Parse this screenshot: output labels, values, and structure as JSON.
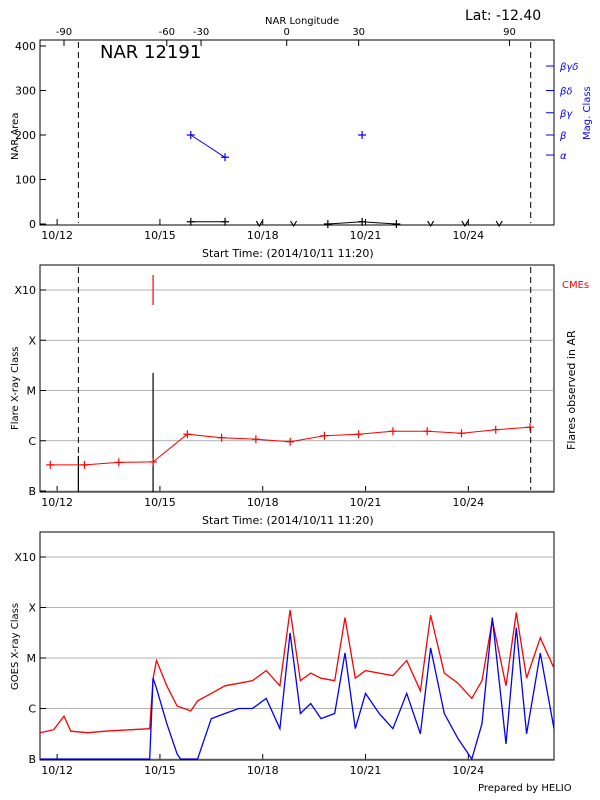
{
  "colors": {
    "axis": "#000000",
    "red": "#ff0000",
    "blue": "#0000ff",
    "grid": "#999999"
  },
  "footer": {
    "credit": "Prepared by HELIO"
  },
  "chart_data": [
    {
      "type": "line",
      "name": "nar-area-panel",
      "title": "NAR 12191",
      "lat_label": "Lat: -12.40",
      "ylabel": "NAR Area",
      "right_ylabel": "Mag. Class",
      "top_xlabel": "NAR Longitude",
      "xlabel": "Start Time: (2014/10/11 11:20)",
      "x_unit": "days since 2014/10/11 00:00",
      "xlim": [
        11.6,
        26.6
      ],
      "ylim": [
        0,
        400
      ],
      "xticks": [
        {
          "x": 12.1,
          "label": "10/12"
        },
        {
          "x": 15.1,
          "label": "10/15"
        },
        {
          "x": 18.1,
          "label": "10/18"
        },
        {
          "x": 21.1,
          "label": "10/21"
        },
        {
          "x": 24.1,
          "label": "10/24"
        }
      ],
      "yticks": [
        0,
        100,
        200,
        300,
        400
      ],
      "top_ticks": [
        {
          "x": 12.3,
          "label": "-90"
        },
        {
          "x": 15.3,
          "label": "-60"
        },
        {
          "x": 16.3,
          "label": "-30"
        },
        {
          "x": 18.8,
          "label": "0"
        },
        {
          "x": 20.9,
          "label": "30"
        },
        {
          "x": 25.3,
          "label": "90"
        }
      ],
      "right_ticks": [
        {
          "y": 155,
          "label": "α"
        },
        {
          "y": 200,
          "label": "β"
        },
        {
          "y": 250,
          "label": "βγ"
        },
        {
          "y": 300,
          "label": "βδ"
        },
        {
          "y": 355,
          "label": "βγδ"
        }
      ],
      "dashed_x": [
        12.72,
        25.92
      ],
      "series": [
        {
          "name": "area",
          "color": "black",
          "marker": "plus",
          "x": [
            16.0,
            17.0
          ],
          "y": [
            5,
            5
          ]
        },
        {
          "name": "area2",
          "color": "black",
          "marker": "plus",
          "x": [
            20.0,
            21.0,
            22.0
          ],
          "y": [
            0,
            5,
            0
          ]
        },
        {
          "name": "area-zero",
          "color": "black",
          "marker": "v",
          "x": [
            18.0,
            19.0,
            23.0,
            24.0,
            25.0
          ],
          "y": [
            0,
            0,
            0,
            0,
            0
          ]
        },
        {
          "name": "mag",
          "color": "blue",
          "marker": "plus",
          "x": [
            16.0,
            17.0
          ],
          "y": [
            200,
            150
          ]
        },
        {
          "name": "mag2",
          "color": "blue",
          "marker": "plus",
          "x": [
            21.0
          ],
          "y": [
            200
          ]
        }
      ]
    },
    {
      "type": "line",
      "name": "flare-panel",
      "ylabel": "Flare X-ray Class",
      "right_ylabel": "Flares observed in AR",
      "right_tag": "CMEs",
      "xlabel": "Start Time: (2014/10/11 11:20)",
      "xlim": [
        11.6,
        26.6
      ],
      "ylim": [
        0,
        4.0
      ],
      "xticks": [
        {
          "x": 12.1,
          "label": "10/12"
        },
        {
          "x": 15.1,
          "label": "10/15"
        },
        {
          "x": 18.1,
          "label": "10/18"
        },
        {
          "x": 21.1,
          "label": "10/21"
        },
        {
          "x": 24.1,
          "label": "10/24"
        }
      ],
      "yticks": [
        {
          "y": 0,
          "label": "B"
        },
        {
          "y": 1,
          "label": "C"
        },
        {
          "y": 2,
          "label": "M"
        },
        {
          "y": 3,
          "label": "X"
        },
        {
          "y": 4,
          "label": "X10"
        }
      ],
      "dashed_x": [
        12.72,
        25.92
      ],
      "cme_marks": [
        {
          "x": 14.9,
          "y0": 3.7,
          "y1": 4.3
        }
      ],
      "flare_bars": [
        {
          "x": 12.72,
          "y": 0.7
        },
        {
          "x": 14.9,
          "y": 2.35
        }
      ],
      "series": [
        {
          "name": "background",
          "color": "red",
          "marker": "plus",
          "x": [
            11.9,
            12.9,
            13.9,
            14.9,
            15.9,
            16.9,
            17.9,
            18.9,
            19.9,
            20.9,
            21.9,
            22.9,
            23.9,
            24.9,
            25.9
          ],
          "y": [
            0.52,
            0.52,
            0.57,
            0.58,
            1.13,
            1.06,
            1.03,
            0.98,
            1.1,
            1.13,
            1.19,
            1.19,
            1.15,
            1.22,
            1.27
          ]
        }
      ]
    },
    {
      "type": "line",
      "name": "goes-panel",
      "ylabel": "GOES X-ray Class",
      "xlim": [
        11.6,
        26.6
      ],
      "ylim": [
        0,
        4.0
      ],
      "xticks": [
        {
          "x": 12.1,
          "label": "10/12"
        },
        {
          "x": 15.1,
          "label": "10/15"
        },
        {
          "x": 18.1,
          "label": "10/18"
        },
        {
          "x": 21.1,
          "label": "10/21"
        },
        {
          "x": 24.1,
          "label": "10/24"
        }
      ],
      "yticks": [
        {
          "y": 0,
          "label": "B"
        },
        {
          "y": 1,
          "label": "C"
        },
        {
          "y": 2,
          "label": "M"
        },
        {
          "y": 3,
          "label": "X"
        },
        {
          "y": 4,
          "label": "X10"
        }
      ],
      "series": [
        {
          "name": "long-channel",
          "color": "red",
          "x": [
            11.6,
            12.0,
            12.3,
            12.5,
            13.0,
            13.5,
            14.0,
            14.8,
            14.9,
            15.0,
            15.3,
            15.6,
            16.0,
            16.2,
            16.6,
            17.0,
            17.4,
            17.8,
            18.2,
            18.6,
            18.9,
            19.2,
            19.5,
            19.8,
            20.2,
            20.5,
            20.8,
            21.1,
            21.5,
            21.9,
            22.3,
            22.7,
            23.0,
            23.4,
            23.8,
            24.2,
            24.5,
            24.8,
            25.2,
            25.5,
            25.8,
            26.2,
            26.6
          ],
          "y": [
            0.52,
            0.58,
            0.85,
            0.55,
            0.52,
            0.55,
            0.57,
            0.6,
            1.6,
            1.95,
            1.45,
            1.05,
            0.95,
            1.15,
            1.3,
            1.45,
            1.5,
            1.55,
            1.75,
            1.45,
            2.95,
            1.55,
            1.7,
            1.6,
            1.55,
            2.8,
            1.6,
            1.75,
            1.7,
            1.65,
            1.95,
            1.35,
            2.85,
            1.7,
            1.5,
            1.2,
            1.55,
            2.75,
            1.45,
            2.9,
            1.6,
            2.4,
            1.8
          ]
        },
        {
          "name": "short-channel",
          "color": "blue",
          "x": [
            11.6,
            14.8,
            14.9,
            15.0,
            15.3,
            15.6,
            15.7,
            16.2,
            16.6,
            17.0,
            17.4,
            17.8,
            18.2,
            18.6,
            18.9,
            19.2,
            19.5,
            19.8,
            20.2,
            20.5,
            20.8,
            21.1,
            21.5,
            21.9,
            22.3,
            22.7,
            23.0,
            23.4,
            23.8,
            24.2,
            24.5,
            24.8,
            25.2,
            25.5,
            25.8,
            26.2,
            26.6
          ],
          "y": [
            0,
            0,
            1.6,
            1.4,
            0.7,
            0.1,
            0,
            0,
            0.8,
            0.9,
            1.0,
            1.0,
            1.2,
            0.6,
            2.5,
            0.9,
            1.1,
            0.8,
            0.9,
            2.1,
            0.6,
            1.3,
            0.9,
            0.6,
            1.3,
            0.5,
            2.2,
            0.9,
            0.4,
            0,
            0.7,
            2.8,
            0.3,
            2.6,
            0.5,
            2.1,
            0.6
          ]
        }
      ]
    }
  ]
}
